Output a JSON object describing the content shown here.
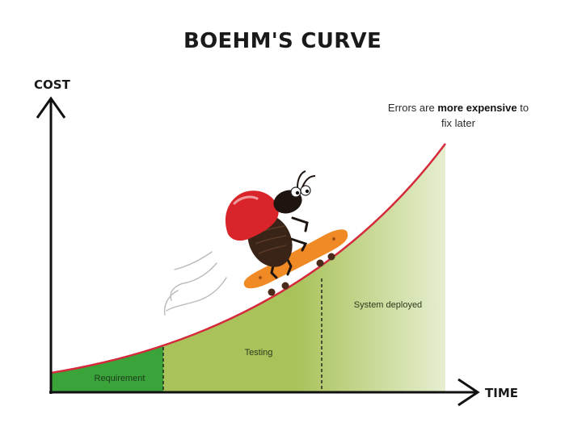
{
  "title": "BOEHM'S CURVE",
  "axes": {
    "y_label": "COST",
    "x_label": "TIME"
  },
  "annotation": {
    "prefix": "Errors are ",
    "emphasis": "more expensive",
    "suffix": " to",
    "line2": "fix later"
  },
  "phases": [
    {
      "label": "Requirement"
    },
    {
      "label": "Testing"
    },
    {
      "label": "System deployed"
    }
  ],
  "colors": {
    "curve": "#d42a3c",
    "fill_dark": "#3aa43a",
    "fill_mid": "#a9c25a",
    "fill_light": "#e6eed0",
    "axis": "#111111",
    "ladybug_shell": "#d9252a",
    "skateboard": "#f08a24"
  }
}
